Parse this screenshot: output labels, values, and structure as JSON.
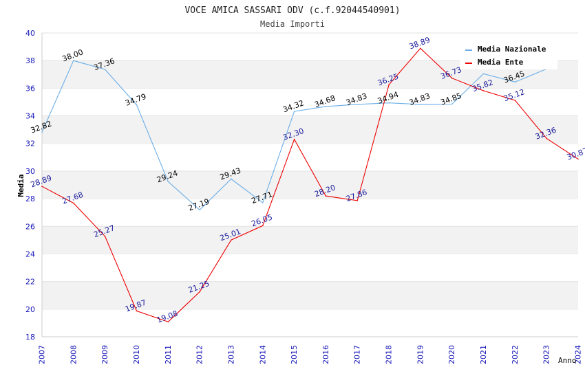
{
  "chart_data": {
    "type": "line",
    "title": "VOCE AMICA SASSARI ODV (c.f.92044540901)",
    "subtitle": "Media Importi",
    "xlabel": "Anno",
    "ylabel": "Media",
    "ylim": [
      18,
      40
    ],
    "yticks": [
      "18",
      "20",
      "22",
      "24",
      "26",
      "28",
      "30",
      "32",
      "34",
      "36",
      "38",
      "40"
    ],
    "x": [
      "2007",
      "2008",
      "2009",
      "2010",
      "2011",
      "2012",
      "2013",
      "2014",
      "2015",
      "2016",
      "2017",
      "2018",
      "2019",
      "2020",
      "2021",
      "2022",
      "2023",
      "2024"
    ],
    "grid": "horizontal bands",
    "legend_position": "top-right",
    "series": [
      {
        "name": "Media Nazionale",
        "color": "#6aaee8",
        "label_color": "#000000",
        "values": [
          32.82,
          38.0,
          37.36,
          34.79,
          29.24,
          27.19,
          29.43,
          27.71,
          34.32,
          34.68,
          34.83,
          34.94,
          34.83,
          34.85,
          37.05,
          36.45,
          37.4,
          null
        ],
        "labels": [
          "32.82",
          "38.00",
          "37.36",
          "34.79",
          "29.24",
          "27.19",
          "29.43",
          "27.71",
          "34.32",
          "34.68",
          "34.83",
          "34.94",
          "34.83",
          "34.85",
          "",
          "36.45",
          "",
          ""
        ]
      },
      {
        "name": "Media Ente",
        "color": "#ee0000",
        "label_color": "#1a1a9c",
        "values": [
          28.89,
          27.68,
          25.27,
          19.87,
          19.08,
          21.25,
          25.01,
          26.05,
          32.3,
          28.2,
          27.86,
          36.25,
          38.89,
          36.73,
          35.82,
          35.12,
          32.36,
          30.87
        ],
        "labels": [
          "28.89",
          "27.68",
          "25.27",
          "19.87",
          "19.08",
          "21.25",
          "25.01",
          "26.05",
          "32.30",
          "28.20",
          "27.86",
          "36.25",
          "38.89",
          "36.73",
          "35.82",
          "35.12",
          "32.36",
          "30.87"
        ]
      }
    ]
  }
}
